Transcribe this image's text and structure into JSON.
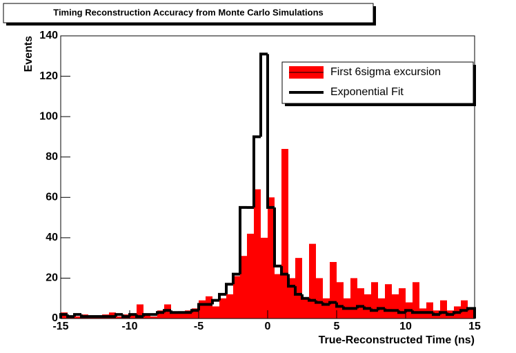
{
  "chart_data": {
    "type": "histogram",
    "title": "Timing Reconstruction Accuracy from Monte Carlo Simulations",
    "x_label": "True-Reconstructed Time (ns)",
    "y_label": "Events",
    "bins": [
      -15,
      -14.5,
      -14,
      -13.5,
      -13,
      -12.5,
      -12,
      -11.5,
      -11,
      -10.5,
      -10,
      -9.5,
      -9,
      -8.5,
      -8,
      -7.5,
      -7,
      -6.5,
      -6,
      -5.5,
      -5,
      -4.5,
      -4,
      -3.5,
      -3,
      -2.5,
      -2,
      -1.5,
      -1,
      -0.5,
      0,
      0.5,
      1,
      1.5,
      2,
      2.5,
      3,
      3.5,
      4,
      4.5,
      5,
      5.5,
      6,
      6.5,
      7,
      7.5,
      8,
      8.5,
      9,
      9.5,
      10,
      10.5,
      11,
      11.5,
      12,
      12.5,
      13,
      13.5,
      14,
      14.5,
      15
    ],
    "series": [
      {
        "name": "First 6sigma excursion",
        "color": "#ff0000",
        "style": "filled",
        "values": [
          3,
          1,
          1,
          2,
          1,
          1,
          2,
          3,
          1,
          2,
          2,
          7,
          2,
          1,
          4,
          7,
          3,
          3,
          4,
          5,
          9,
          11,
          6,
          10,
          12,
          21,
          31,
          42,
          64,
          40,
          60,
          22,
          84,
          20,
          30,
          10,
          37,
          20,
          10,
          28,
          18,
          10,
          20,
          15,
          12,
          18,
          10,
          17,
          12,
          15,
          8,
          18,
          5,
          8,
          4,
          9,
          4,
          6,
          9,
          5
        ]
      },
      {
        "name": "Exponential Fit",
        "color": "#000000",
        "style": "step",
        "values": [
          2,
          1,
          2,
          1,
          1,
          1,
          1,
          1,
          2,
          1,
          2,
          1,
          2,
          2,
          3,
          4,
          3,
          3,
          3,
          4,
          7,
          7,
          9,
          12,
          17,
          22,
          55,
          55,
          90,
          131,
          55,
          26,
          22,
          16,
          12,
          10,
          9,
          8,
          7,
          8,
          6,
          5,
          5,
          6,
          5,
          4,
          5,
          4,
          4,
          3,
          4,
          3,
          3,
          3,
          2,
          3,
          2,
          3,
          4,
          5
        ]
      }
    ],
    "xlim": [
      -15,
      15
    ],
    "xticks": [
      -15,
      -10,
      -5,
      0,
      5,
      10,
      15
    ],
    "ylim": [
      0,
      140
    ],
    "yticks": [
      0,
      20,
      40,
      60,
      80,
      100,
      120,
      140
    ],
    "legend": "top-right"
  }
}
